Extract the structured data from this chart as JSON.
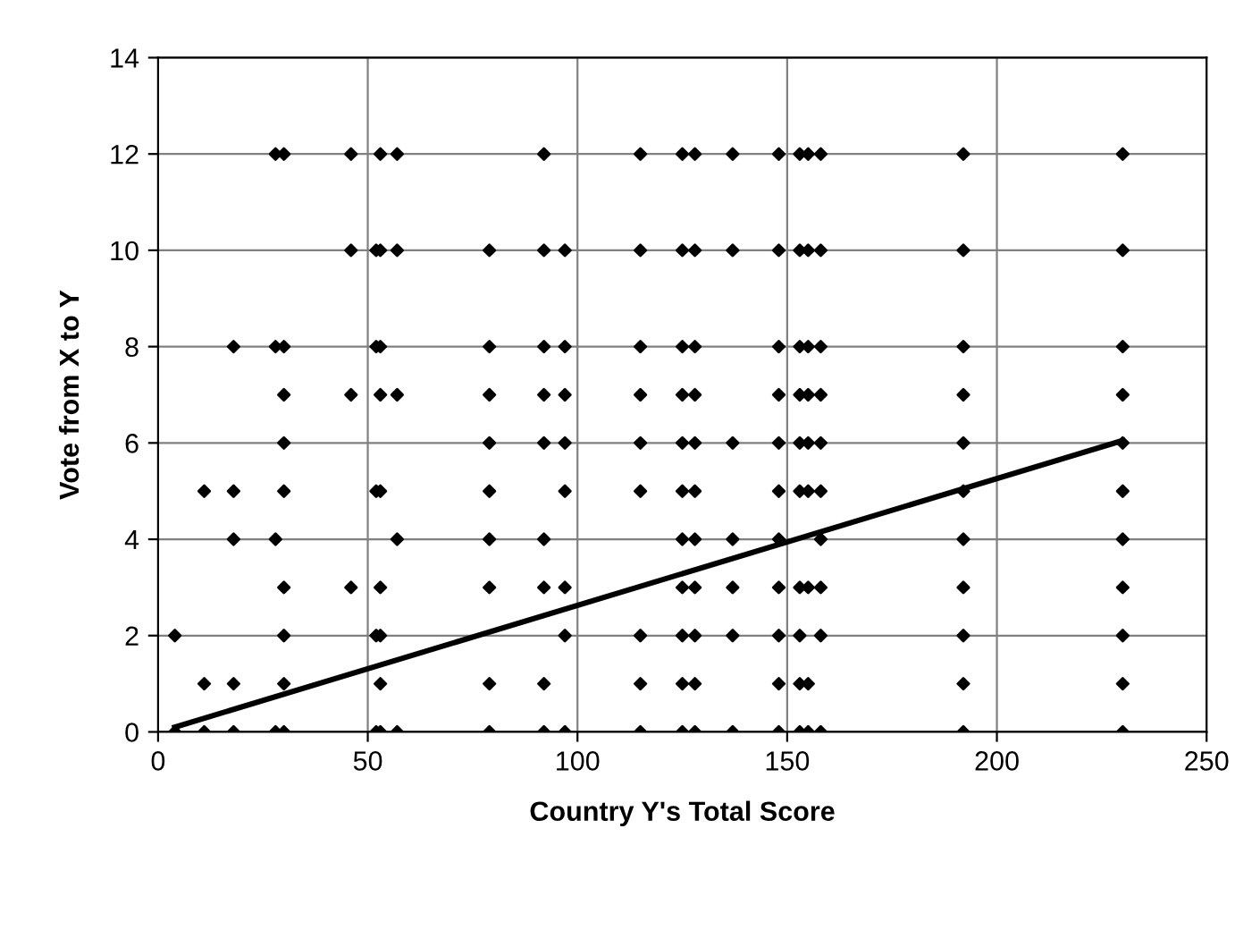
{
  "chart_data": {
    "type": "scatter",
    "xlabel": "Country Y's Total Score",
    "ylabel": "Vote from X to Y",
    "xlim": [
      0,
      250
    ],
    "xticks": [
      0,
      50,
      100,
      150,
      200,
      250
    ],
    "ylim": [
      0,
      14
    ],
    "yticks": [
      0,
      2,
      4,
      6,
      8,
      10,
      12,
      14
    ],
    "grid": true,
    "legend": false,
    "series": [
      {
        "color": "#000000",
        "marker": "diamond",
        "x": [
          4,
          4,
          11,
          11,
          11,
          18,
          18,
          18,
          18,
          18,
          28,
          28,
          28,
          28,
          30,
          30,
          30,
          30,
          30,
          30,
          30,
          30,
          30,
          46,
          46,
          46,
          46,
          52,
          52,
          52,
          52,
          52,
          53,
          53,
          53,
          53,
          53,
          53,
          53,
          53,
          53,
          57,
          57,
          57,
          57,
          57,
          79,
          79,
          79,
          79,
          79,
          79,
          79,
          79,
          79,
          92,
          92,
          92,
          92,
          92,
          92,
          92,
          92,
          92,
          97,
          97,
          97,
          97,
          97,
          97,
          97,
          97,
          115,
          115,
          115,
          115,
          115,
          115,
          115,
          115,
          115,
          125,
          125,
          125,
          125,
          125,
          125,
          125,
          125,
          125,
          125,
          125,
          128,
          128,
          128,
          128,
          128,
          128,
          128,
          128,
          128,
          128,
          128,
          137,
          137,
          137,
          137,
          137,
          137,
          137,
          148,
          148,
          148,
          148,
          148,
          148,
          148,
          148,
          148,
          148,
          148,
          153,
          153,
          153,
          153,
          153,
          153,
          153,
          153,
          153,
          153,
          155,
          155,
          155,
          155,
          155,
          155,
          155,
          155,
          155,
          158,
          158,
          158,
          158,
          158,
          158,
          158,
          158,
          158,
          158,
          192,
          192,
          192,
          192,
          192,
          192,
          192,
          192,
          192,
          192,
          192,
          230,
          230,
          230,
          230,
          230,
          230,
          230,
          230,
          230,
          230,
          230
        ],
        "values": [
          0,
          2,
          0,
          1,
          5,
          0,
          1,
          4,
          5,
          8,
          0,
          4,
          8,
          12,
          0,
          1,
          2,
          3,
          5,
          6,
          7,
          8,
          12,
          3,
          7,
          10,
          12,
          0,
          2,
          5,
          8,
          10,
          0,
          1,
          2,
          3,
          5,
          7,
          8,
          10,
          12,
          0,
          4,
          7,
          10,
          12,
          0,
          1,
          3,
          4,
          5,
          6,
          7,
          8,
          10,
          0,
          1,
          3,
          4,
          6,
          7,
          8,
          10,
          12,
          0,
          2,
          3,
          5,
          6,
          7,
          8,
          10,
          0,
          1,
          2,
          5,
          6,
          7,
          8,
          10,
          12,
          0,
          1,
          2,
          3,
          4,
          5,
          6,
          7,
          8,
          10,
          12,
          0,
          1,
          2,
          3,
          4,
          5,
          6,
          7,
          8,
          10,
          12,
          0,
          2,
          3,
          4,
          6,
          10,
          12,
          0,
          1,
          2,
          3,
          4,
          5,
          6,
          7,
          8,
          10,
          12,
          0,
          1,
          2,
          3,
          5,
          6,
          7,
          8,
          10,
          12,
          0,
          1,
          3,
          5,
          6,
          7,
          8,
          10,
          12,
          0,
          2,
          3,
          4,
          5,
          6,
          7,
          8,
          10,
          12,
          0,
          1,
          2,
          3,
          4,
          5,
          6,
          7,
          8,
          10,
          12,
          0,
          1,
          2,
          3,
          4,
          5,
          6,
          7,
          8,
          10,
          12
        ]
      },
      {
        "type": "line",
        "color": "#000000",
        "marker": "none",
        "line_style": "solid",
        "x": [
          4,
          230
        ],
        "values": [
          0.1,
          6.05
        ]
      }
    ]
  }
}
